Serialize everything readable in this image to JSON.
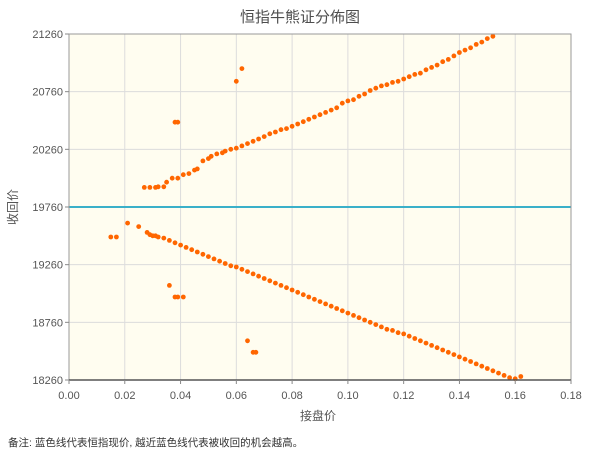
{
  "chart_data": {
    "type": "scatter",
    "title": "恒指牛熊证分佈图",
    "xlabel": "接盘价",
    "ylabel": "收回价",
    "xlim": [
      0,
      0.18
    ],
    "ylim": [
      18260,
      21260
    ],
    "x_ticks": [
      "0.00",
      "0.02",
      "0.04",
      "0.06",
      "0.08",
      "0.10",
      "0.12",
      "0.14",
      "0.16",
      "0.18"
    ],
    "y_ticks": [
      "18260",
      "18760",
      "19260",
      "19760",
      "20260",
      "20760",
      "21260"
    ],
    "reference_line": {
      "value": 19760,
      "color": "#3ab0c9"
    },
    "grid": true,
    "point_color": "#ff6600",
    "plot_background": "#fffdf0",
    "series": [
      {
        "points": [
          [
            0.027,
            19930
          ],
          [
            0.029,
            19930
          ],
          [
            0.031,
            19930
          ],
          [
            0.032,
            19935
          ],
          [
            0.034,
            19935
          ],
          [
            0.035,
            19975
          ],
          [
            0.037,
            20010
          ],
          [
            0.039,
            20010
          ],
          [
            0.041,
            20040
          ],
          [
            0.043,
            20050
          ],
          [
            0.045,
            20080
          ],
          [
            0.046,
            20090
          ],
          [
            0.048,
            20160
          ],
          [
            0.05,
            20180
          ],
          [
            0.051,
            20200
          ],
          [
            0.053,
            20220
          ],
          [
            0.055,
            20230
          ],
          [
            0.056,
            20245
          ],
          [
            0.058,
            20260
          ],
          [
            0.06,
            20270
          ],
          [
            0.062,
            20290
          ],
          [
            0.064,
            20310
          ],
          [
            0.066,
            20330
          ],
          [
            0.068,
            20350
          ],
          [
            0.07,
            20370
          ],
          [
            0.072,
            20395
          ],
          [
            0.074,
            20410
          ],
          [
            0.076,
            20430
          ],
          [
            0.078,
            20440
          ],
          [
            0.08,
            20460
          ],
          [
            0.082,
            20480
          ],
          [
            0.084,
            20500
          ],
          [
            0.086,
            20520
          ],
          [
            0.088,
            20540
          ],
          [
            0.09,
            20560
          ],
          [
            0.092,
            20580
          ],
          [
            0.094,
            20600
          ],
          [
            0.096,
            20620
          ],
          [
            0.098,
            20660
          ],
          [
            0.1,
            20680
          ],
          [
            0.102,
            20690
          ],
          [
            0.104,
            20720
          ],
          [
            0.106,
            20740
          ],
          [
            0.108,
            20770
          ],
          [
            0.11,
            20790
          ],
          [
            0.112,
            20810
          ],
          [
            0.114,
            20820
          ],
          [
            0.116,
            20840
          ],
          [
            0.118,
            20850
          ],
          [
            0.12,
            20870
          ],
          [
            0.122,
            20890
          ],
          [
            0.124,
            20910
          ],
          [
            0.126,
            20920
          ],
          [
            0.128,
            20950
          ],
          [
            0.13,
            20970
          ],
          [
            0.132,
            20990
          ],
          [
            0.134,
            21020
          ],
          [
            0.136,
            21040
          ],
          [
            0.138,
            21070
          ],
          [
            0.14,
            21100
          ],
          [
            0.142,
            21120
          ],
          [
            0.144,
            21140
          ],
          [
            0.146,
            21170
          ],
          [
            0.148,
            21190
          ],
          [
            0.15,
            21220
          ],
          [
            0.152,
            21240
          ],
          [
            0.038,
            20495
          ],
          [
            0.039,
            20495
          ],
          [
            0.06,
            20850
          ],
          [
            0.062,
            20960
          ]
        ]
      },
      {
        "points": [
          [
            0.015,
            19500
          ],
          [
            0.017,
            19500
          ],
          [
            0.021,
            19620
          ],
          [
            0.025,
            19590
          ],
          [
            0.028,
            19540
          ],
          [
            0.029,
            19520
          ],
          [
            0.03,
            19510
          ],
          [
            0.031,
            19510
          ],
          [
            0.032,
            19500
          ],
          [
            0.034,
            19490
          ],
          [
            0.036,
            19470
          ],
          [
            0.038,
            19450
          ],
          [
            0.04,
            19430
          ],
          [
            0.042,
            19410
          ],
          [
            0.044,
            19390
          ],
          [
            0.046,
            19370
          ],
          [
            0.048,
            19350
          ],
          [
            0.05,
            19330
          ],
          [
            0.052,
            19310
          ],
          [
            0.054,
            19290
          ],
          [
            0.056,
            19270
          ],
          [
            0.058,
            19250
          ],
          [
            0.06,
            19240
          ],
          [
            0.062,
            19220
          ],
          [
            0.064,
            19200
          ],
          [
            0.066,
            19180
          ],
          [
            0.068,
            19160
          ],
          [
            0.07,
            19140
          ],
          [
            0.072,
            19120
          ],
          [
            0.074,
            19100
          ],
          [
            0.076,
            19080
          ],
          [
            0.078,
            19060
          ],
          [
            0.08,
            19040
          ],
          [
            0.082,
            19020
          ],
          [
            0.084,
            19000
          ],
          [
            0.086,
            18980
          ],
          [
            0.088,
            18960
          ],
          [
            0.09,
            18940
          ],
          [
            0.092,
            18920
          ],
          [
            0.094,
            18900
          ],
          [
            0.096,
            18880
          ],
          [
            0.098,
            18860
          ],
          [
            0.1,
            18840
          ],
          [
            0.102,
            18820
          ],
          [
            0.104,
            18800
          ],
          [
            0.106,
            18780
          ],
          [
            0.108,
            18760
          ],
          [
            0.11,
            18740
          ],
          [
            0.112,
            18720
          ],
          [
            0.114,
            18700
          ],
          [
            0.116,
            18690
          ],
          [
            0.118,
            18670
          ],
          [
            0.12,
            18660
          ],
          [
            0.122,
            18640
          ],
          [
            0.124,
            18620
          ],
          [
            0.126,
            18600
          ],
          [
            0.128,
            18580
          ],
          [
            0.13,
            18560
          ],
          [
            0.132,
            18540
          ],
          [
            0.134,
            18520
          ],
          [
            0.136,
            18500
          ],
          [
            0.138,
            18480
          ],
          [
            0.14,
            18460
          ],
          [
            0.142,
            18440
          ],
          [
            0.144,
            18420
          ],
          [
            0.146,
            18400
          ],
          [
            0.148,
            18380
          ],
          [
            0.15,
            18360
          ],
          [
            0.152,
            18340
          ],
          [
            0.154,
            18320
          ],
          [
            0.156,
            18300
          ],
          [
            0.158,
            18280
          ],
          [
            0.16,
            18270
          ],
          [
            0.162,
            18290
          ],
          [
            0.036,
            19080
          ],
          [
            0.038,
            18980
          ],
          [
            0.039,
            18980
          ],
          [
            0.041,
            18980
          ],
          [
            0.064,
            18600
          ],
          [
            0.066,
            18500
          ],
          [
            0.067,
            18500
          ]
        ]
      }
    ]
  },
  "note": "备注:   蓝色线代表恒指现价, 越近蓝色线代表被收回的机会越高。"
}
